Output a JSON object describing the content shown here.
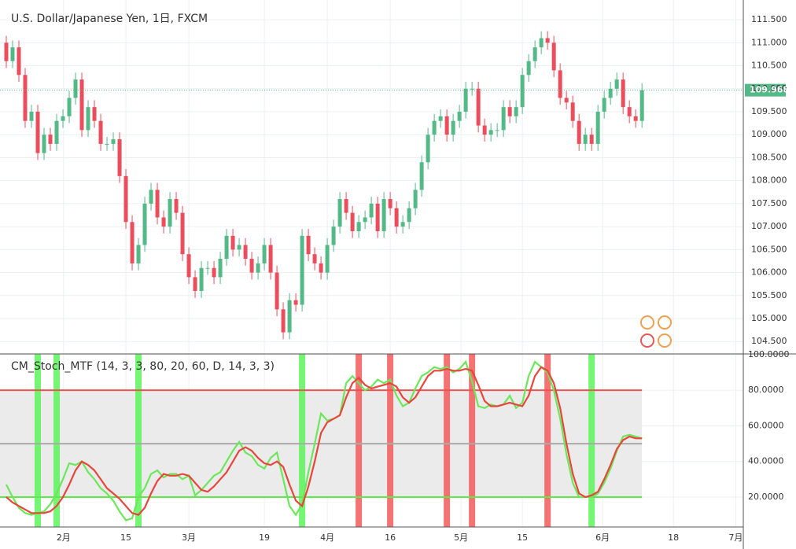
{
  "chart_data": [
    {
      "type": "candlestick",
      "title": "U.S. Dollar/Japanese Yen, 1日, FXCM",
      "up_color": "#53b987",
      "down_color": "#eb4d5c",
      "open": [
        111.0,
        110.6,
        110.9,
        110.3,
        109.3,
        109.5,
        108.6,
        109.0,
        108.8,
        109.3,
        109.4,
        109.8,
        110.2,
        109.1,
        109.6,
        109.3,
        108.8,
        108.8,
        108.9,
        108.1,
        107.1,
        106.2,
        106.6,
        107.5,
        107.8,
        107.2,
        107.0,
        107.6,
        107.3,
        106.4,
        105.9,
        105.6,
        106.1,
        106.1,
        105.9,
        106.3,
        106.8,
        106.5,
        106.6,
        106.3,
        106.0,
        106.2,
        106.6,
        106.0,
        105.2,
        104.7,
        105.4,
        105.3,
        106.8,
        106.4,
        106.2,
        106.0,
        106.6,
        107.0,
        107.6,
        107.3,
        106.9,
        107.1,
        107.2,
        107.5,
        106.9,
        107.6,
        107.4,
        107.0,
        107.1,
        107.4,
        107.8,
        108.4,
        109.0,
        109.3,
        109.4,
        109.0,
        109.3,
        109.5,
        110.0,
        110.0,
        109.2,
        109.0,
        109.1,
        109.1,
        109.6,
        109.4,
        109.6,
        110.3,
        110.6,
        110.9,
        111.1,
        111.0,
        110.4,
        109.8,
        109.7,
        109.3,
        108.8,
        109.0,
        108.8,
        109.5,
        109.8,
        110.0,
        110.2,
        109.6,
        109.4,
        109.3
      ],
      "high": [
        111.15,
        111.05,
        111.05,
        110.45,
        109.65,
        109.65,
        109.15,
        109.15,
        109.45,
        109.55,
        109.95,
        110.35,
        110.35,
        109.75,
        109.75,
        109.45,
        108.95,
        109.05,
        109.05,
        108.25,
        107.25,
        106.75,
        107.65,
        107.95,
        107.95,
        107.35,
        107.75,
        107.75,
        107.45,
        106.55,
        106.05,
        106.25,
        106.25,
        106.25,
        106.45,
        106.95,
        106.95,
        106.75,
        106.75,
        106.45,
        106.35,
        106.75,
        106.75,
        106.15,
        105.35,
        105.55,
        105.55,
        106.95,
        106.95,
        106.55,
        106.35,
        106.75,
        107.15,
        107.75,
        107.75,
        107.45,
        107.25,
        107.35,
        107.65,
        107.65,
        107.75,
        107.75,
        107.55,
        107.25,
        107.55,
        107.95,
        108.55,
        109.15,
        109.45,
        109.55,
        109.55,
        109.45,
        109.65,
        110.15,
        110.15,
        110.15,
        109.35,
        109.25,
        109.25,
        109.75,
        109.75,
        109.75,
        110.45,
        110.75,
        111.05,
        111.25,
        111.25,
        111.15,
        110.55,
        109.95,
        109.85,
        109.45,
        109.15,
        109.15,
        109.65,
        109.95,
        110.15,
        110.35,
        110.35,
        109.75,
        109.55,
        110.12
      ],
      "low": [
        110.45,
        110.45,
        110.15,
        109.15,
        109.15,
        108.45,
        108.45,
        108.65,
        108.65,
        109.15,
        109.25,
        109.65,
        108.95,
        108.95,
        109.15,
        108.65,
        108.65,
        108.65,
        107.95,
        106.95,
        106.05,
        106.05,
        106.45,
        107.35,
        107.05,
        106.85,
        106.85,
        107.15,
        106.25,
        105.75,
        105.45,
        105.45,
        105.95,
        105.75,
        105.75,
        106.15,
        106.35,
        106.35,
        106.15,
        105.85,
        105.85,
        106.05,
        105.85,
        105.05,
        104.55,
        104.55,
        105.15,
        105.15,
        106.25,
        106.05,
        105.85,
        105.85,
        106.45,
        106.85,
        107.15,
        106.75,
        106.75,
        106.95,
        107.05,
        106.75,
        106.75,
        107.25,
        106.85,
        106.85,
        106.95,
        107.25,
        107.65,
        108.25,
        108.85,
        109.15,
        108.85,
        108.85,
        109.15,
        109.35,
        109.85,
        109.05,
        108.85,
        108.85,
        108.95,
        108.95,
        109.25,
        109.25,
        109.45,
        110.15,
        110.45,
        110.75,
        110.85,
        110.25,
        109.65,
        109.55,
        109.15,
        108.65,
        108.65,
        108.65,
        108.65,
        109.35,
        109.65,
        109.85,
        109.45,
        109.25,
        109.15,
        109.15
      ],
      "close": [
        110.6,
        110.9,
        110.3,
        109.3,
        109.5,
        108.6,
        109.0,
        108.8,
        109.3,
        109.4,
        109.8,
        110.2,
        109.1,
        109.6,
        109.3,
        108.8,
        108.8,
        108.9,
        108.1,
        107.1,
        106.2,
        106.6,
        107.5,
        107.8,
        107.2,
        107.0,
        107.6,
        107.3,
        106.4,
        105.9,
        105.6,
        106.1,
        106.1,
        105.9,
        106.3,
        106.8,
        106.5,
        106.6,
        106.3,
        106.0,
        106.2,
        106.6,
        106.0,
        105.2,
        104.7,
        105.4,
        105.3,
        106.8,
        106.4,
        106.2,
        106.0,
        106.6,
        107.0,
        107.6,
        107.3,
        106.9,
        107.1,
        107.2,
        107.5,
        106.9,
        107.6,
        107.4,
        107.0,
        107.1,
        107.4,
        107.8,
        108.4,
        109.0,
        109.3,
        109.4,
        109.0,
        109.3,
        109.5,
        110.0,
        110.0,
        109.2,
        109.0,
        109.1,
        109.1,
        109.6,
        109.4,
        109.6,
        110.3,
        110.6,
        110.9,
        111.1,
        111.0,
        110.4,
        109.8,
        109.7,
        109.3,
        108.8,
        109.0,
        108.8,
        109.5,
        109.8,
        110.0,
        110.2,
        109.6,
        109.4,
        109.3,
        109.968
      ],
      "last_price": {
        "value": 109.968,
        "label": "109.968"
      },
      "xlim": [
        -1,
        117.1
      ],
      "xticks": [
        {
          "value": 9.1,
          "label": "2月"
        },
        {
          "value": 19,
          "label": "15"
        },
        {
          "value": 29,
          "label": "3月"
        },
        {
          "value": 41,
          "label": "19"
        },
        {
          "value": 51,
          "label": "4月"
        },
        {
          "value": 61,
          "label": "16"
        },
        {
          "value": 72.25,
          "label": "5月"
        },
        {
          "value": 82,
          "label": "15"
        },
        {
          "value": 94.75,
          "label": "6月"
        },
        {
          "value": 106,
          "label": "18"
        },
        {
          "value": 115.9,
          "label": "7月"
        }
      ],
      "ylim": [
        104.23,
        111.93
      ],
      "yticks": [
        {
          "value": 104.5,
          "label": "104.500"
        },
        {
          "value": 105,
          "label": "105.000"
        },
        {
          "value": 105.5,
          "label": "105.500"
        },
        {
          "value": 106,
          "label": "106.000"
        },
        {
          "value": 106.5,
          "label": "106.500"
        },
        {
          "value": 107,
          "label": "107.000"
        },
        {
          "value": 107.5,
          "label": "107.500"
        },
        {
          "value": 108,
          "label": "108.000"
        },
        {
          "value": 108.5,
          "label": "108.500"
        },
        {
          "value": 109,
          "label": "109.000"
        },
        {
          "value": 109.5,
          "label": "109.500"
        },
        {
          "value": 110,
          "label": "110.000"
        },
        {
          "value": 110.5,
          "label": "110.500"
        },
        {
          "value": 111,
          "label": "111.000"
        },
        {
          "value": 111.5,
          "label": "111.500"
        }
      ],
      "grid": true
    },
    {
      "type": "line",
      "title": "CM_Stoch_MTF (14, 3, 3, 80, 20, 60, D, 14, 3, 3)",
      "series": [
        {
          "color": "#6be85a",
          "values": [
            27,
            20,
            14,
            11,
            10,
            11,
            12,
            16,
            22,
            30,
            39,
            38,
            40,
            34,
            30,
            25,
            22,
            18,
            12,
            7,
            8,
            20,
            25,
            33,
            35,
            31,
            33,
            33,
            30,
            32,
            21,
            24,
            28,
            32,
            34,
            40,
            46,
            51,
            45,
            43,
            38,
            36,
            42,
            45,
            30,
            15,
            10,
            16,
            34,
            50,
            67,
            63,
            64,
            66,
            84,
            88,
            84,
            80,
            82,
            86,
            84,
            86,
            77,
            71,
            73,
            81,
            88,
            90,
            93,
            92,
            93,
            90,
            92,
            96,
            85,
            71,
            70,
            72,
            71,
            72,
            77,
            70,
            73,
            88,
            96,
            93,
            90,
            80,
            64,
            44,
            28,
            20,
            20,
            20,
            22,
            28,
            36,
            46,
            54,
            55,
            54,
            53
          ]
        },
        {
          "color": "#e8453c",
          "values": [
            20,
            17,
            15,
            13,
            11,
            11,
            11,
            12,
            15,
            20,
            27,
            35,
            40,
            38,
            35,
            30,
            25,
            22,
            19,
            15,
            11,
            10,
            14,
            22,
            29,
            33,
            32,
            32,
            33,
            32,
            28,
            24,
            23,
            26,
            30,
            34,
            40,
            46,
            48,
            46,
            42,
            39,
            38,
            40,
            37,
            27,
            18,
            15,
            26,
            40,
            56,
            62,
            64,
            66,
            76,
            84,
            87,
            83,
            81,
            82,
            83,
            84,
            82,
            76,
            73,
            76,
            82,
            88,
            91,
            91,
            92,
            91,
            91,
            92,
            91,
            83,
            74,
            71,
            71,
            72,
            73,
            72,
            71,
            77,
            88,
            93,
            91,
            84,
            70,
            50,
            33,
            22,
            20,
            21,
            23,
            30,
            38,
            47,
            52,
            54,
            53,
            53
          ]
        }
      ],
      "buy_signals": [
        5,
        8,
        21,
        47,
        93
      ],
      "buy_color": "#5cf35c",
      "sell_signals": [
        56,
        61,
        70,
        74,
        86
      ],
      "sell_color": "#f35a5a",
      "levels": [
        {
          "value": 80,
          "color": "#ef5350"
        },
        {
          "value": 50,
          "color": "#aaaaaa"
        },
        {
          "value": 20,
          "color": "#5ee84a"
        }
      ],
      "ylim": [
        3.2,
        100.4
      ],
      "yticks": [
        {
          "value": 20,
          "label": "20.0000"
        },
        {
          "value": 40,
          "label": "40.0000"
        },
        {
          "value": 60,
          "label": "60.0000"
        },
        {
          "value": 80,
          "label": "80.0000"
        },
        {
          "value": 100,
          "label": "100.0000"
        }
      ]
    }
  ]
}
